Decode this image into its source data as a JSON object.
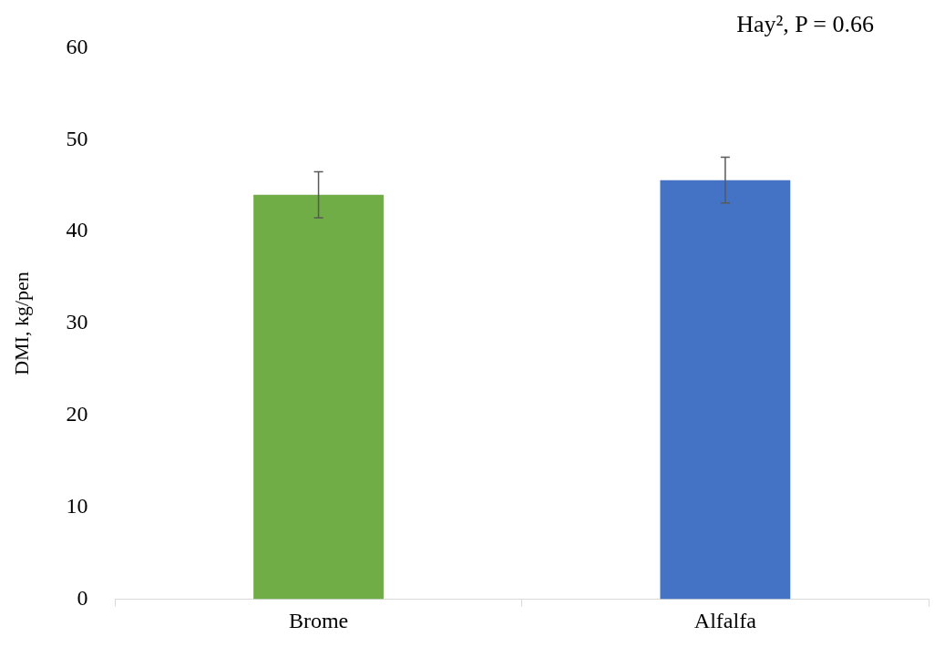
{
  "chart_data": {
    "type": "bar",
    "categories": [
      "Brome",
      "Alfalfa"
    ],
    "values": [
      44.0,
      45.6
    ],
    "colors": [
      "#70ad47",
      "#4472c4"
    ],
    "errors": [
      2.5,
      2.5
    ],
    "ylabel": "DMI, kg/pen",
    "ylim": [
      0,
      60
    ],
    "yticks": [
      0,
      10,
      20,
      30,
      40,
      50,
      60
    ],
    "grid": false,
    "legend": false,
    "annotations": [
      "Hay², P = 0.66"
    ]
  }
}
